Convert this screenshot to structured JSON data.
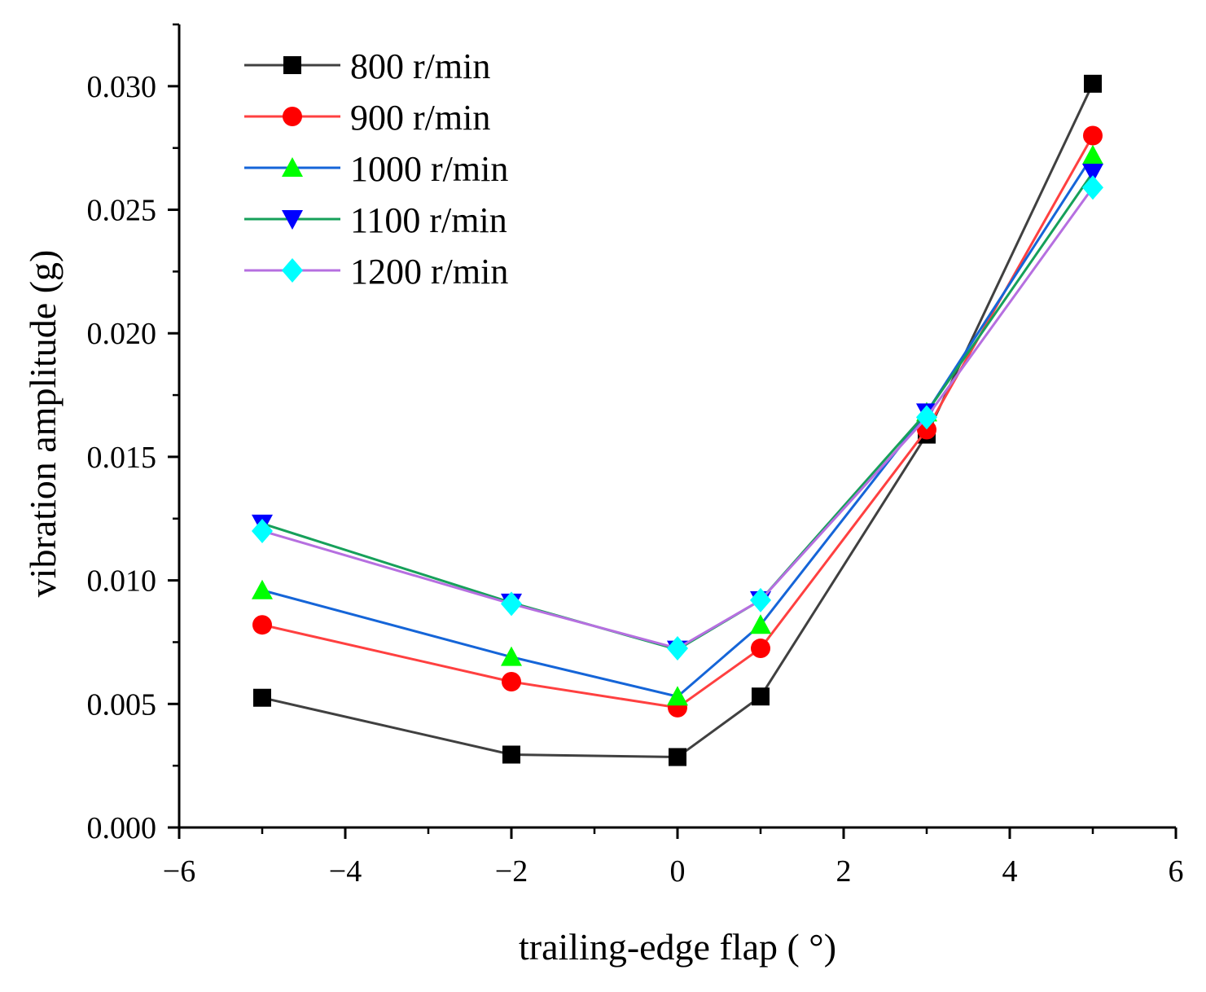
{
  "chart_data": {
    "type": "line",
    "title": "",
    "xlabel": "trailing-edge flap ( °)",
    "ylabel": "vibration amplitude (g)",
    "xlim": [
      -6,
      6
    ],
    "ylim": [
      0,
      0.0325
    ],
    "x_ticks": [
      -6,
      -4,
      -2,
      0,
      2,
      4,
      6
    ],
    "x_tick_labels": [
      "−6",
      "−4",
      "−2",
      "0",
      "2",
      "4",
      "6"
    ],
    "y_ticks": [
      0,
      0.005,
      0.01,
      0.015,
      0.02,
      0.025,
      0.03
    ],
    "y_tick_labels": [
      "0.000",
      "0.005",
      "0.010",
      "0.015",
      "0.020",
      "0.025",
      "0.030"
    ],
    "grid": false,
    "legend_position": "top-left",
    "x": [
      -5,
      -2,
      0,
      1,
      3,
      5
    ],
    "series": [
      {
        "name": "800 r/min",
        "line_color": "#404040",
        "marker_color": "#000000",
        "marker": "square",
        "values": [
          0.00525,
          0.00295,
          0.00285,
          0.0053,
          0.0159,
          0.0301
        ]
      },
      {
        "name": "900 r/min",
        "line_color": "#ff4040",
        "marker_color": "#ff0000",
        "marker": "circle",
        "values": [
          0.0082,
          0.0059,
          0.00485,
          0.00725,
          0.0161,
          0.028
        ]
      },
      {
        "name": "1000 r/min",
        "line_color": "#1565d8",
        "marker_color": "#00ff00",
        "marker": "triangle-up",
        "values": [
          0.0096,
          0.0069,
          0.0053,
          0.0082,
          0.0168,
          0.0272
        ]
      },
      {
        "name": "1100 r/min",
        "line_color": "#16a05a",
        "marker_color": "#0000ff",
        "marker": "triangle-down",
        "values": [
          0.0123,
          0.0091,
          0.0072,
          0.0092,
          0.0168,
          0.0265
        ]
      },
      {
        "name": "1200 r/min",
        "line_color": "#b66fe0",
        "marker_color": "#00ffff",
        "marker": "diamond",
        "values": [
          0.012,
          0.00905,
          0.00725,
          0.0092,
          0.0166,
          0.0259
        ]
      }
    ]
  }
}
